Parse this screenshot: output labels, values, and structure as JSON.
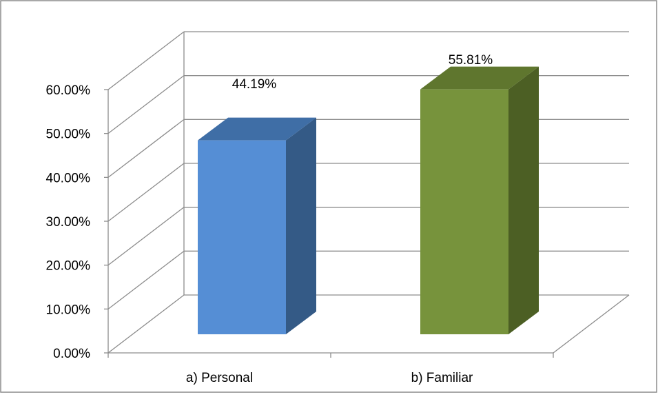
{
  "chart_data": {
    "type": "bar",
    "categories": [
      "a) Personal",
      "b) Familiar"
    ],
    "series": [
      {
        "values": [
          44.19,
          55.81
        ]
      }
    ],
    "data_labels": [
      "44.19%",
      "55.81%"
    ],
    "yticks": [
      "0.00%",
      "10.00%",
      "20.00%",
      "30.00%",
      "40.00%",
      "50.00%",
      "60.00%"
    ],
    "ylim": [
      0,
      60
    ],
    "grid": true,
    "style": "3d-column",
    "colors": {
      "bar_front": [
        "#558ED5",
        "#77933C"
      ],
      "bar_side": [
        "#345A86",
        "#4C5F24"
      ],
      "bar_top": [
        "#3F6EA6",
        "#5F762E"
      ],
      "gridline": "#8C8C8C",
      "frame": "#8C8C8C"
    }
  }
}
